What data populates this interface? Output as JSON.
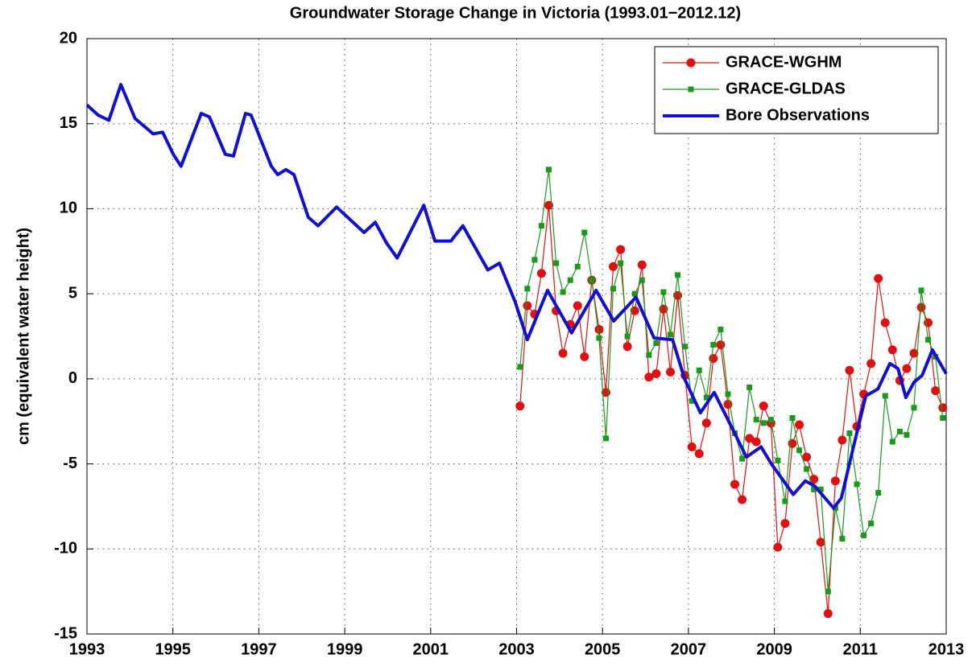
{
  "chart_data": {
    "type": "line",
    "title": "Groundwater Storage Change in Victoria (1993.01−2012.12)",
    "y_label": "cm (equivalent water height)",
    "xlim": [
      1993,
      2013
    ],
    "xticks": [
      1993,
      1995,
      1997,
      1999,
      2001,
      2003,
      2005,
      2007,
      2009,
      2011,
      2013
    ],
    "ylim": [
      -15,
      20
    ],
    "yticks": [
      -15,
      -10,
      -5,
      0,
      5,
      10,
      15,
      20
    ],
    "grid": true,
    "legend": "top-right",
    "series": [
      {
        "name": "GRACE-WGHM",
        "color": "#e01010",
        "marker": "circle",
        "x": [
          2003.08,
          2003.25,
          2003.42,
          2003.58,
          2003.75,
          2003.92,
          2004.08,
          2004.25,
          2004.42,
          2004.58,
          2004.75,
          2004.92,
          2005.08,
          2005.25,
          2005.42,
          2005.58,
          2005.75,
          2005.92,
          2006.08,
          2006.25,
          2006.42,
          2006.58,
          2006.75,
          2006.92,
          2007.08,
          2007.25,
          2007.42,
          2007.58,
          2007.75,
          2007.92,
          2008.08,
          2008.25,
          2008.42,
          2008.58,
          2008.75,
          2008.92,
          2009.08,
          2009.25,
          2009.42,
          2009.58,
          2009.75,
          2009.92,
          2010.08,
          2010.25,
          2010.42,
          2010.58,
          2010.75,
          2010.92,
          2011.08,
          2011.25,
          2011.42,
          2011.58,
          2011.75,
          2011.92,
          2012.08,
          2012.25,
          2012.42,
          2012.58,
          2012.75,
          2012.92
        ],
        "values": [
          -1.6,
          4.3,
          3.8,
          6.2,
          10.2,
          4.0,
          1.5,
          3.2,
          4.3,
          1.3,
          5.8,
          2.9,
          -0.8,
          6.6,
          7.6,
          1.9,
          4.0,
          6.7,
          0.1,
          0.3,
          4.1,
          0.4,
          4.9,
          0.2,
          -4.0,
          -4.4,
          -2.6,
          1.2,
          2.0,
          -1.5,
          -6.2,
          -7.1,
          -3.5,
          -3.7,
          -1.6,
          -2.6,
          -9.9,
          -8.5,
          -3.8,
          -2.7,
          -4.6,
          -5.9,
          -9.6,
          -13.8,
          -6.0,
          -3.6,
          0.5,
          -2.8,
          -0.9,
          0.9,
          5.9,
          3.3,
          1.7,
          -0.1,
          0.6,
          1.5,
          4.2,
          3.3,
          -0.7,
          -1.7
        ]
      },
      {
        "name": "GRACE-GLDAS",
        "color": "#1a9a1a",
        "marker": "square",
        "x": [
          2003.08,
          2003.25,
          2003.42,
          2003.58,
          2003.75,
          2003.92,
          2004.08,
          2004.25,
          2004.42,
          2004.58,
          2004.75,
          2004.92,
          2005.08,
          2005.25,
          2005.42,
          2005.58,
          2005.75,
          2005.92,
          2006.08,
          2006.25,
          2006.42,
          2006.58,
          2006.75,
          2006.92,
          2007.08,
          2007.25,
          2007.42,
          2007.58,
          2007.75,
          2007.92,
          2008.08,
          2008.25,
          2008.42,
          2008.58,
          2008.75,
          2008.92,
          2009.08,
          2009.25,
          2009.42,
          2009.58,
          2009.75,
          2009.92,
          2010.08,
          2010.25,
          2010.42,
          2010.58,
          2010.75,
          2010.92,
          2011.08,
          2011.25,
          2011.42,
          2011.58,
          2011.75,
          2011.92,
          2012.08,
          2012.25,
          2012.42,
          2012.58,
          2012.75,
          2012.92
        ],
        "values": [
          0.7,
          5.3,
          7.0,
          9.0,
          12.3,
          6.8,
          5.1,
          5.8,
          6.6,
          8.6,
          5.8,
          2.4,
          -3.5,
          5.3,
          6.8,
          2.5,
          5.0,
          5.8,
          1.4,
          2.1,
          5.1,
          2.6,
          6.1,
          1.9,
          -1.3,
          0.5,
          -1.1,
          2.0,
          2.9,
          -0.9,
          -3.2,
          -4.7,
          -0.5,
          -2.4,
          -2.6,
          -2.4,
          -4.8,
          -7.2,
          -2.3,
          -4.2,
          -5.3,
          -6.5,
          -6.5,
          -12.5,
          -7.6,
          -9.4,
          -3.2,
          -6.2,
          -9.2,
          -8.5,
          -6.7,
          -1.0,
          -3.7,
          -3.1,
          -3.3,
          -1.7,
          5.2,
          2.3,
          1.3,
          -2.3
        ]
      },
      {
        "name": "Bore Observations",
        "color": "#1010d0",
        "marker": "none",
        "x": [
          1993.0,
          1993.26,
          1993.51,
          1993.79,
          1994.12,
          1994.54,
          1994.76,
          1995.01,
          1995.19,
          1995.66,
          1995.85,
          1996.22,
          1996.41,
          1996.69,
          1996.82,
          1997.29,
          1997.44,
          1997.63,
          1997.82,
          1998.15,
          1998.38,
          1998.81,
          1999.45,
          1999.71,
          1999.97,
          2000.22,
          2000.84,
          2001.1,
          2001.47,
          2001.75,
          2002.33,
          2002.6,
          2002.97,
          2003.25,
          2003.72,
          2004.28,
          2004.85,
          2005.26,
          2005.78,
          2006.2,
          2006.63,
          2006.91,
          2007.28,
          2007.6,
          2007.94,
          2008.35,
          2008.69,
          2008.93,
          2009.44,
          2009.72,
          2009.94,
          2010.38,
          2010.56,
          2010.84,
          2011.13,
          2011.41,
          2011.69,
          2011.88,
          2012.06,
          2012.25,
          2012.44,
          2012.68,
          2013.0
        ],
        "values": [
          16.1,
          15.5,
          15.2,
          17.3,
          15.3,
          14.4,
          14.5,
          13.2,
          12.5,
          15.6,
          15.4,
          13.2,
          13.1,
          15.6,
          15.5,
          12.5,
          12.0,
          12.3,
          12.0,
          9.5,
          9.0,
          10.1,
          8.6,
          9.2,
          8.0,
          7.1,
          10.2,
          8.1,
          8.1,
          9.0,
          6.4,
          6.8,
          4.5,
          2.3,
          5.2,
          2.7,
          5.2,
          3.4,
          4.8,
          2.4,
          2.3,
          0.0,
          -2.0,
          -0.8,
          -2.5,
          -4.6,
          -4.0,
          -5.0,
          -6.8,
          -6.0,
          -6.3,
          -7.6,
          -7.0,
          -4.0,
          -1.0,
          -0.6,
          0.9,
          0.6,
          -1.1,
          -0.2,
          0.2,
          1.7,
          0.3
        ]
      }
    ]
  }
}
